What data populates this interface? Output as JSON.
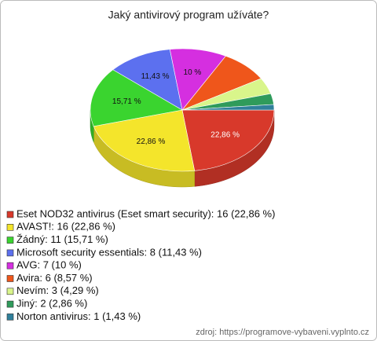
{
  "chart_data": {
    "type": "pie3d",
    "title": "Jaký antivirový program užíváte?",
    "categories": [
      "Eset NOD32 antivirus (Eset smart security): 16 (22,86 %)",
      "AVAST!: 16 (22,86 %)",
      "Žádný: 11 (15,71 %)",
      "Microsoft security essentials: 8 (11,43 %)",
      "AVG: 7 (10 %)",
      "Avira: 6 (8,57 %)",
      "Nevím: 3 (4,29 %)",
      "Jiný: 2 (2,86 %)",
      "Norton antivirus: 1 (1,43 %)"
    ],
    "values": [
      22.86,
      22.86,
      15.71,
      11.43,
      10,
      8.57,
      4.29,
      2.86,
      1.43
    ],
    "value_labels": [
      "22,86 %",
      "22,86 %",
      "15,71 %",
      "11,43 %",
      "10 %",
      null,
      null,
      null,
      null
    ],
    "colors": [
      "#d8392b",
      "#f4e52b",
      "#3ad42f",
      "#5c70ef",
      "#d52fe0",
      "#ef561b",
      "#d9f58b",
      "#2f9b5b",
      "#30809b"
    ],
    "source": "zdroj: https://programove-vybaveni.vyplnto.cz"
  }
}
